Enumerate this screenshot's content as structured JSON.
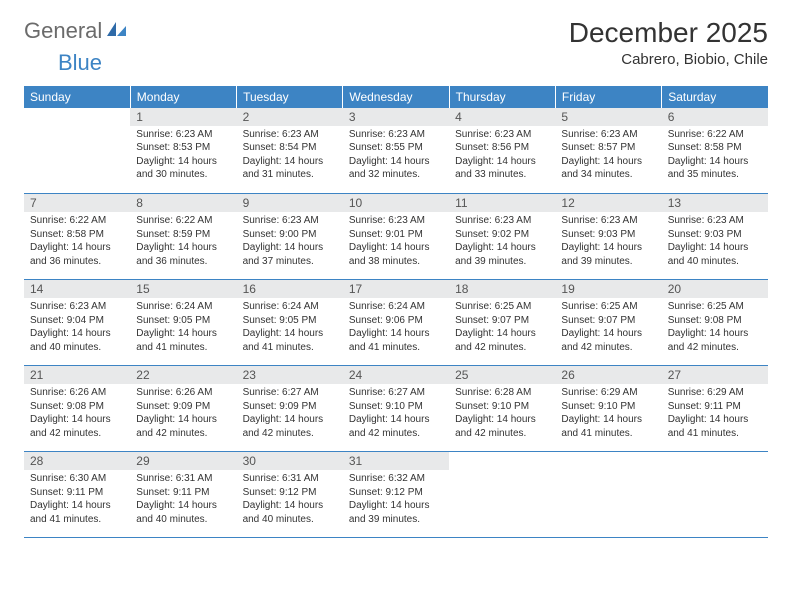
{
  "brand": {
    "part1": "General",
    "part2": "Blue"
  },
  "title": "December 2025",
  "location": "Cabrero, Biobio, Chile",
  "colors": {
    "header_bg": "#3d84c4",
    "header_text": "#ffffff",
    "daynum_bg": "#e8e9ea",
    "daynum_text": "#555555",
    "body_text": "#333333",
    "rule": "#3d84c4",
    "logo_gray": "#6b6b6b",
    "logo_blue": "#3d84c4"
  },
  "weekdays": [
    "Sunday",
    "Monday",
    "Tuesday",
    "Wednesday",
    "Thursday",
    "Friday",
    "Saturday"
  ],
  "weeks": [
    [
      null,
      {
        "n": "1",
        "sr": "6:23 AM",
        "ss": "8:53 PM",
        "dl": "14 hours and 30 minutes."
      },
      {
        "n": "2",
        "sr": "6:23 AM",
        "ss": "8:54 PM",
        "dl": "14 hours and 31 minutes."
      },
      {
        "n": "3",
        "sr": "6:23 AM",
        "ss": "8:55 PM",
        "dl": "14 hours and 32 minutes."
      },
      {
        "n": "4",
        "sr": "6:23 AM",
        "ss": "8:56 PM",
        "dl": "14 hours and 33 minutes."
      },
      {
        "n": "5",
        "sr": "6:23 AM",
        "ss": "8:57 PM",
        "dl": "14 hours and 34 minutes."
      },
      {
        "n": "6",
        "sr": "6:22 AM",
        "ss": "8:58 PM",
        "dl": "14 hours and 35 minutes."
      }
    ],
    [
      {
        "n": "7",
        "sr": "6:22 AM",
        "ss": "8:58 PM",
        "dl": "14 hours and 36 minutes."
      },
      {
        "n": "8",
        "sr": "6:22 AM",
        "ss": "8:59 PM",
        "dl": "14 hours and 36 minutes."
      },
      {
        "n": "9",
        "sr": "6:23 AM",
        "ss": "9:00 PM",
        "dl": "14 hours and 37 minutes."
      },
      {
        "n": "10",
        "sr": "6:23 AM",
        "ss": "9:01 PM",
        "dl": "14 hours and 38 minutes."
      },
      {
        "n": "11",
        "sr": "6:23 AM",
        "ss": "9:02 PM",
        "dl": "14 hours and 39 minutes."
      },
      {
        "n": "12",
        "sr": "6:23 AM",
        "ss": "9:03 PM",
        "dl": "14 hours and 39 minutes."
      },
      {
        "n": "13",
        "sr": "6:23 AM",
        "ss": "9:03 PM",
        "dl": "14 hours and 40 minutes."
      }
    ],
    [
      {
        "n": "14",
        "sr": "6:23 AM",
        "ss": "9:04 PM",
        "dl": "14 hours and 40 minutes."
      },
      {
        "n": "15",
        "sr": "6:24 AM",
        "ss": "9:05 PM",
        "dl": "14 hours and 41 minutes."
      },
      {
        "n": "16",
        "sr": "6:24 AM",
        "ss": "9:05 PM",
        "dl": "14 hours and 41 minutes."
      },
      {
        "n": "17",
        "sr": "6:24 AM",
        "ss": "9:06 PM",
        "dl": "14 hours and 41 minutes."
      },
      {
        "n": "18",
        "sr": "6:25 AM",
        "ss": "9:07 PM",
        "dl": "14 hours and 42 minutes."
      },
      {
        "n": "19",
        "sr": "6:25 AM",
        "ss": "9:07 PM",
        "dl": "14 hours and 42 minutes."
      },
      {
        "n": "20",
        "sr": "6:25 AM",
        "ss": "9:08 PM",
        "dl": "14 hours and 42 minutes."
      }
    ],
    [
      {
        "n": "21",
        "sr": "6:26 AM",
        "ss": "9:08 PM",
        "dl": "14 hours and 42 minutes."
      },
      {
        "n": "22",
        "sr": "6:26 AM",
        "ss": "9:09 PM",
        "dl": "14 hours and 42 minutes."
      },
      {
        "n": "23",
        "sr": "6:27 AM",
        "ss": "9:09 PM",
        "dl": "14 hours and 42 minutes."
      },
      {
        "n": "24",
        "sr": "6:27 AM",
        "ss": "9:10 PM",
        "dl": "14 hours and 42 minutes."
      },
      {
        "n": "25",
        "sr": "6:28 AM",
        "ss": "9:10 PM",
        "dl": "14 hours and 42 minutes."
      },
      {
        "n": "26",
        "sr": "6:29 AM",
        "ss": "9:10 PM",
        "dl": "14 hours and 41 minutes."
      },
      {
        "n": "27",
        "sr": "6:29 AM",
        "ss": "9:11 PM",
        "dl": "14 hours and 41 minutes."
      }
    ],
    [
      {
        "n": "28",
        "sr": "6:30 AM",
        "ss": "9:11 PM",
        "dl": "14 hours and 41 minutes."
      },
      {
        "n": "29",
        "sr": "6:31 AM",
        "ss": "9:11 PM",
        "dl": "14 hours and 40 minutes."
      },
      {
        "n": "30",
        "sr": "6:31 AM",
        "ss": "9:12 PM",
        "dl": "14 hours and 40 minutes."
      },
      {
        "n": "31",
        "sr": "6:32 AM",
        "ss": "9:12 PM",
        "dl": "14 hours and 39 minutes."
      },
      null,
      null,
      null
    ]
  ],
  "labels": {
    "sunrise": "Sunrise:",
    "sunset": "Sunset:",
    "daylight": "Daylight:"
  }
}
